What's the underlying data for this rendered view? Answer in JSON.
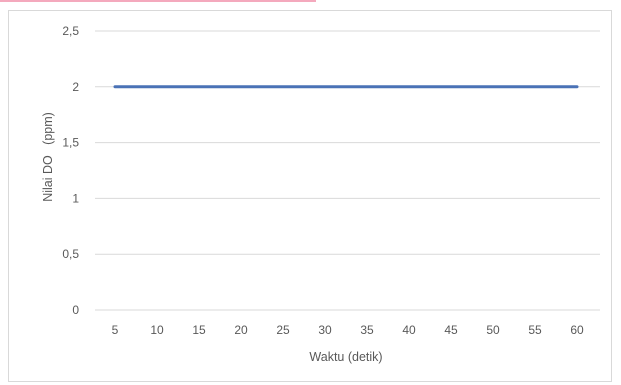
{
  "chart_data": {
    "type": "line",
    "x": [
      5,
      10,
      15,
      20,
      25,
      30,
      35,
      40,
      45,
      50,
      55,
      60
    ],
    "series": [
      {
        "values": [
          2,
          2,
          2,
          2,
          2,
          2,
          2,
          2,
          2,
          2,
          2,
          2
        ],
        "color": "#4a72b6"
      }
    ],
    "y_ticks": [
      "0",
      "0,5",
      "1",
      "1,5",
      "2",
      "2,5"
    ],
    "x_ticks": [
      "5",
      "10",
      "15",
      "20",
      "25",
      "30",
      "35",
      "40",
      "45",
      "50",
      "55",
      "60"
    ],
    "xlabel": "Waktu (detik)",
    "ylabel": "Nilai DO   (ppm)",
    "ylim": [
      0,
      2.5
    ],
    "grid": true,
    "gridline_color": "#d9d9d9",
    "text_color": "#595959",
    "accent_strip_color": "#f4a9bd"
  }
}
